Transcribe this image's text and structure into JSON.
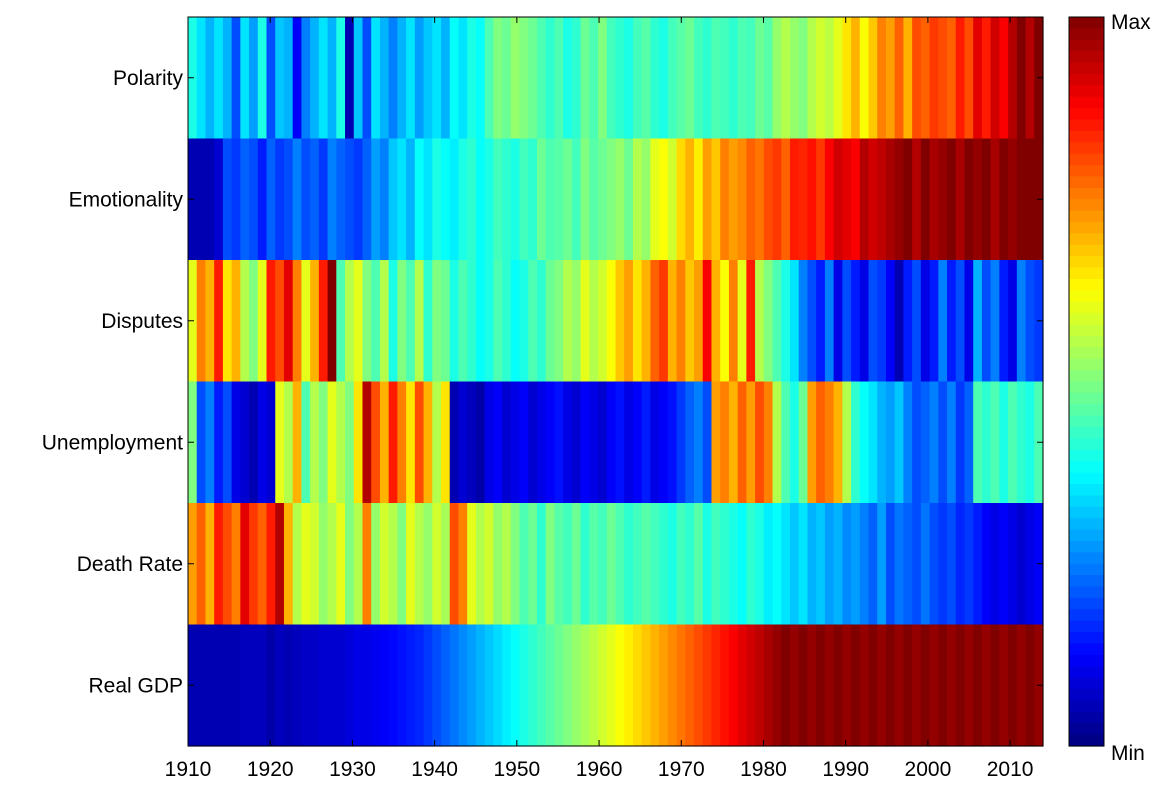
{
  "chart_data": {
    "type": "heatmap",
    "x_start_year": 1910,
    "x_end_year": 2014,
    "x_ticks": [
      "1910",
      "1920",
      "1930",
      "1940",
      "1950",
      "1960",
      "1970",
      "1980",
      "1990",
      "2000",
      "2010"
    ],
    "x_tick_values": [
      1910,
      1920,
      1930,
      1940,
      1950,
      1960,
      1970,
      1980,
      1990,
      2000,
      2010
    ],
    "rows": [
      "Polarity",
      "Emotionality",
      "Disputes",
      "Unemployment",
      "Death Rate",
      "Real GDP"
    ],
    "colorbar": {
      "max_label": "Max",
      "min_label": "Min",
      "colormap": "jet",
      "range": [
        0,
        1
      ]
    },
    "values": [
      [
        0.4,
        0.35,
        0.3,
        0.35,
        0.3,
        0.2,
        0.35,
        0.28,
        0.4,
        0.2,
        0.32,
        0.3,
        0.12,
        0.25,
        0.3,
        0.35,
        0.3,
        0.4,
        0.05,
        0.32,
        0.2,
        0.35,
        0.3,
        0.25,
        0.3,
        0.35,
        0.28,
        0.32,
        0.35,
        0.3,
        0.38,
        0.35,
        0.4,
        0.38,
        0.45,
        0.5,
        0.48,
        0.52,
        0.5,
        0.48,
        0.45,
        0.42,
        0.45,
        0.4,
        0.42,
        0.48,
        0.45,
        0.5,
        0.44,
        0.42,
        0.4,
        0.44,
        0.46,
        0.42,
        0.4,
        0.44,
        0.46,
        0.48,
        0.44,
        0.42,
        0.45,
        0.44,
        0.42,
        0.45,
        0.44,
        0.48,
        0.46,
        0.52,
        0.55,
        0.52,
        0.5,
        0.55,
        0.58,
        0.56,
        0.6,
        0.65,
        0.7,
        0.62,
        0.68,
        0.75,
        0.72,
        0.78,
        0.7,
        0.8,
        0.78,
        0.82,
        0.8,
        0.78,
        0.85,
        0.8,
        0.9,
        0.85,
        0.92,
        0.88,
        0.95,
        1.0,
        0.95,
        1.0
      ],
      [
        0.05,
        0.05,
        0.05,
        0.08,
        0.2,
        0.18,
        0.22,
        0.2,
        0.15,
        0.22,
        0.18,
        0.2,
        0.25,
        0.2,
        0.22,
        0.18,
        0.25,
        0.22,
        0.2,
        0.18,
        0.22,
        0.28,
        0.25,
        0.32,
        0.35,
        0.3,
        0.38,
        0.35,
        0.4,
        0.38,
        0.36,
        0.4,
        0.42,
        0.38,
        0.4,
        0.44,
        0.42,
        0.4,
        0.44,
        0.42,
        0.48,
        0.45,
        0.46,
        0.48,
        0.44,
        0.5,
        0.46,
        0.48,
        0.5,
        0.52,
        0.48,
        0.55,
        0.52,
        0.6,
        0.62,
        0.58,
        0.66,
        0.7,
        0.64,
        0.72,
        0.68,
        0.75,
        0.72,
        0.74,
        0.78,
        0.76,
        0.8,
        0.82,
        0.78,
        0.85,
        0.84,
        0.86,
        0.82,
        0.88,
        0.92,
        0.9,
        0.88,
        0.95,
        0.92,
        0.94,
        0.96,
        0.98,
        1.0,
        0.95,
        1.0,
        0.96,
        0.98,
        1.0,
        0.96,
        1.0,
        0.98,
        1.0,
        0.96,
        1.0,
        0.98,
        1.0,
        1.0,
        1.0
      ],
      [
        0.6,
        0.75,
        0.7,
        0.85,
        0.65,
        0.7,
        0.55,
        0.5,
        0.6,
        0.85,
        0.8,
        0.9,
        0.75,
        0.6,
        0.7,
        0.85,
        1.0,
        0.45,
        0.55,
        0.6,
        0.5,
        0.45,
        0.55,
        0.4,
        0.5,
        0.45,
        0.55,
        0.42,
        0.5,
        0.48,
        0.4,
        0.45,
        0.42,
        0.38,
        0.4,
        0.45,
        0.42,
        0.38,
        0.4,
        0.45,
        0.42,
        0.48,
        0.5,
        0.55,
        0.52,
        0.6,
        0.55,
        0.58,
        0.62,
        0.68,
        0.72,
        0.65,
        0.7,
        0.78,
        0.82,
        0.7,
        0.75,
        0.68,
        0.72,
        0.88,
        0.7,
        0.62,
        0.75,
        0.6,
        0.85,
        0.55,
        0.5,
        0.45,
        0.4,
        0.35,
        0.25,
        0.2,
        0.15,
        0.25,
        0.1,
        0.2,
        0.15,
        0.1,
        0.2,
        0.18,
        0.12,
        0.05,
        0.15,
        0.2,
        0.1,
        0.15,
        0.25,
        0.15,
        0.2,
        0.1,
        0.3,
        0.2,
        0.25,
        0.15,
        0.1,
        0.25,
        0.2,
        0.18
      ],
      [
        0.5,
        0.2,
        0.25,
        0.15,
        0.2,
        0.1,
        0.08,
        0.05,
        0.1,
        0.08,
        0.6,
        0.55,
        0.7,
        0.45,
        0.55,
        0.5,
        0.6,
        0.55,
        0.5,
        0.65,
        0.95,
        0.8,
        0.7,
        0.85,
        0.75,
        0.65,
        0.8,
        0.7,
        0.55,
        0.65,
        0.05,
        0.08,
        0.06,
        0.04,
        0.1,
        0.12,
        0.08,
        0.1,
        0.12,
        0.08,
        0.1,
        0.12,
        0.14,
        0.1,
        0.08,
        0.12,
        0.1,
        0.08,
        0.12,
        0.14,
        0.1,
        0.12,
        0.15,
        0.1,
        0.12,
        0.14,
        0.18,
        0.22,
        0.25,
        0.2,
        0.72,
        0.75,
        0.7,
        0.78,
        0.72,
        0.8,
        0.75,
        0.55,
        0.45,
        0.4,
        0.48,
        0.72,
        0.78,
        0.75,
        0.7,
        0.55,
        0.42,
        0.38,
        0.35,
        0.3,
        0.28,
        0.32,
        0.25,
        0.2,
        0.22,
        0.25,
        0.2,
        0.25,
        0.18,
        0.22,
        0.45,
        0.42,
        0.45,
        0.4,
        0.45,
        0.42,
        0.4,
        0.45
      ],
      [
        0.72,
        0.78,
        0.7,
        0.85,
        0.8,
        0.75,
        0.9,
        0.82,
        0.78,
        0.85,
        0.95,
        0.7,
        0.55,
        0.6,
        0.58,
        0.52,
        0.55,
        0.6,
        0.5,
        0.55,
        0.75,
        0.52,
        0.58,
        0.55,
        0.5,
        0.6,
        0.55,
        0.52,
        0.58,
        0.54,
        0.8,
        0.75,
        0.6,
        0.55,
        0.58,
        0.52,
        0.55,
        0.5,
        0.45,
        0.48,
        0.42,
        0.5,
        0.46,
        0.44,
        0.48,
        0.42,
        0.46,
        0.44,
        0.48,
        0.45,
        0.42,
        0.44,
        0.46,
        0.44,
        0.42,
        0.4,
        0.44,
        0.42,
        0.46,
        0.4,
        0.44,
        0.42,
        0.4,
        0.38,
        0.42,
        0.4,
        0.36,
        0.38,
        0.35,
        0.32,
        0.35,
        0.3,
        0.32,
        0.28,
        0.3,
        0.26,
        0.28,
        0.25,
        0.22,
        0.28,
        0.2,
        0.24,
        0.22,
        0.2,
        0.24,
        0.2,
        0.18,
        0.2,
        0.16,
        0.18,
        0.15,
        0.12,
        0.1,
        0.12,
        0.1,
        0.08,
        0.1,
        0.12
      ],
      [
        0.05,
        0.05,
        0.05,
        0.05,
        0.05,
        0.05,
        0.06,
        0.06,
        0.06,
        0.04,
        0.06,
        0.05,
        0.06,
        0.07,
        0.07,
        0.08,
        0.08,
        0.08,
        0.09,
        0.1,
        0.1,
        0.11,
        0.12,
        0.13,
        0.14,
        0.15,
        0.16,
        0.18,
        0.2,
        0.22,
        0.24,
        0.26,
        0.28,
        0.3,
        0.32,
        0.34,
        0.36,
        0.38,
        0.4,
        0.42,
        0.44,
        0.46,
        0.48,
        0.5,
        0.52,
        0.54,
        0.56,
        0.58,
        0.6,
        0.62,
        0.64,
        0.66,
        0.68,
        0.7,
        0.72,
        0.74,
        0.76,
        0.78,
        0.8,
        0.82,
        0.84,
        0.86,
        0.88,
        0.9,
        0.92,
        0.94,
        0.96,
        0.98,
        1.0,
        0.98,
        1.0,
        0.98,
        1.0,
        0.98,
        1.0,
        0.98,
        1.0,
        0.98,
        1.0,
        0.98,
        1.0,
        0.98,
        1.0,
        0.98,
        1.0,
        0.98,
        1.0,
        0.98,
        1.0,
        0.98,
        1.0,
        0.98,
        1.0,
        0.98,
        1.0,
        0.98,
        1.0,
        0.98
      ]
    ]
  }
}
